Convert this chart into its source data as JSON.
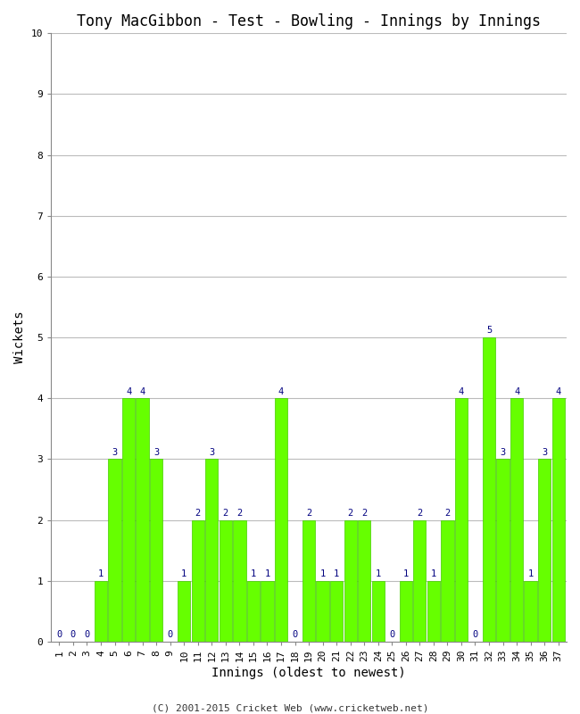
{
  "title": "Tony MacGibbon - Test - Bowling - Innings by Innings",
  "xlabel": "Innings (oldest to newest)",
  "ylabel": "Wickets",
  "innings": [
    1,
    2,
    3,
    4,
    5,
    6,
    7,
    8,
    9,
    10,
    11,
    12,
    13,
    14,
    15,
    16,
    17,
    18,
    19,
    20,
    21,
    22,
    23,
    24,
    25,
    26,
    27,
    28,
    29,
    30,
    31,
    32,
    33,
    34,
    35,
    36,
    37
  ],
  "wickets": [
    0,
    0,
    0,
    1,
    3,
    4,
    4,
    3,
    0,
    1,
    2,
    3,
    2,
    2,
    1,
    1,
    4,
    0,
    2,
    1,
    1,
    2,
    2,
    1,
    0,
    1,
    2,
    1,
    2,
    4,
    0,
    5,
    3,
    4,
    1,
    3,
    4
  ],
  "bar_color": "#66ff00",
  "bar_edge_color": "#44cc00",
  "label_color": "#000080",
  "background_color": "#ffffff",
  "ylim": [
    0,
    10
  ],
  "yticks": [
    0,
    1,
    2,
    3,
    4,
    5,
    6,
    7,
    8,
    9,
    10
  ],
  "grid_color": "#bbbbbb",
  "title_fontsize": 12,
  "axis_label_fontsize": 10,
  "tick_label_fontsize": 8,
  "bar_label_fontsize": 7.5,
  "footer": "(C) 2001-2015 Cricket Web (www.cricketweb.net)"
}
